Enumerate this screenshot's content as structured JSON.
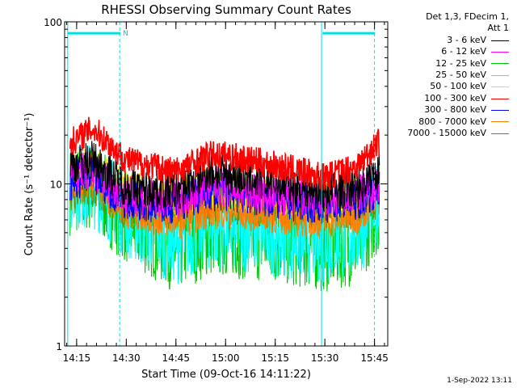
{
  "chart_data": {
    "type": "line",
    "title": "RHESSI Observing Summary Count Rates",
    "xlabel": "Start Time (09-Oct-16 14:11:22)",
    "ylabel": "Count Rate (s⁻¹ detector⁻¹)",
    "yscale": "log",
    "ylim": [
      1,
      100
    ],
    "xlim": [
      "14:11",
      "15:49"
    ],
    "x_ticks": [
      "14:15",
      "14:30",
      "14:45",
      "15:00",
      "15:15",
      "15:30",
      "15:45"
    ],
    "y_ticks": [
      "1",
      "10",
      "100"
    ],
    "legend_header": [
      "Det 1,3, FDecim 1,",
      "Att 1"
    ],
    "annotation_n": "N",
    "timestamp": "1-Sep-2022 13:11",
    "night_markers": [
      "14:12",
      "14:28",
      "15:29",
      "15:45"
    ],
    "night_bars": [
      {
        "start": "14:12",
        "end": "14:28",
        "level": 85
      },
      {
        "start": "15:29",
        "end": "15:45",
        "level": 85
      }
    ],
    "series": [
      {
        "name": "3 - 6 keV",
        "color": "#000000",
        "points": [
          [
            "14:13",
            13
          ],
          [
            "14:20",
            14
          ],
          [
            "14:30",
            9.5
          ],
          [
            "14:45",
            9
          ],
          [
            "14:55",
            12
          ],
          [
            "15:00",
            11.5
          ],
          [
            "15:15",
            10
          ],
          [
            "15:30",
            9
          ],
          [
            "15:40",
            9.5
          ],
          [
            "15:46",
            12
          ]
        ]
      },
      {
        "name": "6 - 12 keV",
        "color": "#ff00ff",
        "points": [
          [
            "14:13",
            12
          ],
          [
            "14:20",
            12
          ],
          [
            "14:30",
            8.5
          ],
          [
            "14:45",
            8
          ],
          [
            "14:55",
            10
          ],
          [
            "15:00",
            9.5
          ],
          [
            "15:15",
            8.5
          ],
          [
            "15:30",
            8
          ],
          [
            "15:40",
            8.5
          ],
          [
            "15:46",
            10
          ]
        ]
      },
      {
        "name": "12 - 25 keV",
        "color": "#00c800",
        "points": [
          [
            "14:13",
            9
          ],
          [
            "14:20",
            9.5
          ],
          [
            "14:30",
            6
          ],
          [
            "14:45",
            4
          ],
          [
            "14:55",
            5
          ],
          [
            "15:00",
            5
          ],
          [
            "15:15",
            4.5
          ],
          [
            "15:30",
            4
          ],
          [
            "15:40",
            4.5
          ],
          [
            "15:46",
            7
          ]
        ]
      },
      {
        "name": "25 - 50 keV",
        "color": "#00ffff",
        "points": [
          [
            "14:13",
            9.5
          ],
          [
            "14:20",
            10
          ],
          [
            "14:30",
            6.5
          ],
          [
            "14:45",
            4.5
          ],
          [
            "14:55",
            5.5
          ],
          [
            "15:00",
            5.5
          ],
          [
            "15:15",
            5
          ],
          [
            "15:30",
            4.5
          ],
          [
            "15:40",
            5
          ],
          [
            "15:46",
            7.5
          ]
        ]
      },
      {
        "name": "50 - 100 keV",
        "color": "#e6e600",
        "points": [
          [
            "14:13",
            12
          ],
          [
            "14:20",
            13
          ],
          [
            "14:30",
            9
          ],
          [
            "14:45",
            8
          ],
          [
            "14:55",
            9.5
          ],
          [
            "15:00",
            9
          ],
          [
            "15:15",
            8.5
          ],
          [
            "15:30",
            8
          ],
          [
            "15:40",
            8.5
          ],
          [
            "15:46",
            10
          ]
        ]
      },
      {
        "name": "100 - 300 keV",
        "color": "#ff0000",
        "points": [
          [
            "14:13",
            18
          ],
          [
            "14:20",
            22
          ],
          [
            "14:30",
            14
          ],
          [
            "14:45",
            12
          ],
          [
            "14:55",
            15
          ],
          [
            "15:00",
            15
          ],
          [
            "15:15",
            13
          ],
          [
            "15:30",
            11
          ],
          [
            "15:40",
            13
          ],
          [
            "15:46",
            18
          ]
        ]
      },
      {
        "name": "300 - 800 keV",
        "color": "#0000ff",
        "points": [
          [
            "14:13",
            10.5
          ],
          [
            "14:20",
            11
          ],
          [
            "14:30",
            8
          ],
          [
            "14:45",
            7.5
          ],
          [
            "14:55",
            9
          ],
          [
            "15:00",
            9
          ],
          [
            "15:15",
            8
          ],
          [
            "15:30",
            7.5
          ],
          [
            "15:40",
            8
          ],
          [
            "15:46",
            9.5
          ]
        ]
      },
      {
        "name": "800 - 7000 keV",
        "color": "#ff8000",
        "points": [
          [
            "14:13",
            10
          ],
          [
            "14:20",
            10.5
          ],
          [
            "14:30",
            7
          ],
          [
            "14:45",
            6
          ],
          [
            "14:55",
            7
          ],
          [
            "15:00",
            7
          ],
          [
            "15:15",
            6.5
          ],
          [
            "15:30",
            6
          ],
          [
            "15:40",
            6.5
          ],
          [
            "15:46",
            8.5
          ]
        ]
      },
      {
        "name": "7000 - 15000 keV",
        "color": "#6e8c00",
        "points": [
          [
            "14:13",
            9
          ],
          [
            "14:20",
            9
          ],
          [
            "14:30",
            7
          ],
          [
            "14:45",
            7
          ],
          [
            "14:55",
            7.5
          ],
          [
            "15:00",
            7.5
          ],
          [
            "15:15",
            7
          ],
          [
            "15:30",
            7
          ],
          [
            "15:40",
            7
          ],
          [
            "15:46",
            8
          ]
        ]
      }
    ]
  }
}
